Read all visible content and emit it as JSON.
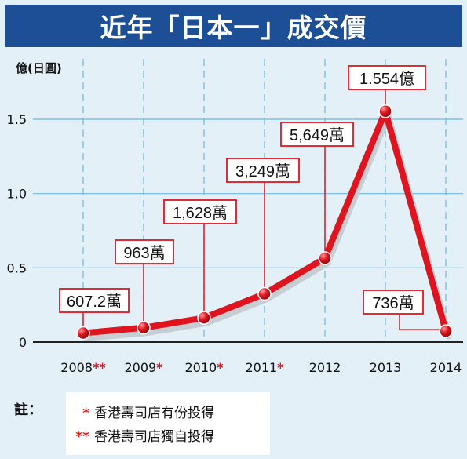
{
  "title": "近年「日本一」成交價",
  "chart_data": {
    "type": "line",
    "ylabel": "億(日圓)",
    "ylim": [
      0,
      1.6
    ],
    "yticks": [
      "0",
      "0.5",
      "1.0",
      "1.5"
    ],
    "categories": [
      "2008",
      "2009",
      "2010",
      "2011",
      "2012",
      "2013",
      "2014"
    ],
    "category_marks": [
      "**",
      "*",
      "*",
      "*",
      "",
      "",
      ""
    ],
    "values": [
      0.0607,
      0.0963,
      0.1628,
      0.3249,
      0.5649,
      1.554,
      0.0736
    ],
    "data_labels": [
      "607.2萬",
      "963萬",
      "1,628萬",
      "3,249萬",
      "5,649萬",
      "1.554億",
      "736萬"
    ],
    "grid": true,
    "line_color": "#e0141e",
    "grid_color": "#6fb7dc"
  },
  "notes": {
    "label": "註：",
    "items": [
      {
        "mark": "*",
        "text": "香港壽司店有份投得"
      },
      {
        "mark": "**",
        "text": "香港壽司店獨自投得"
      }
    ]
  }
}
